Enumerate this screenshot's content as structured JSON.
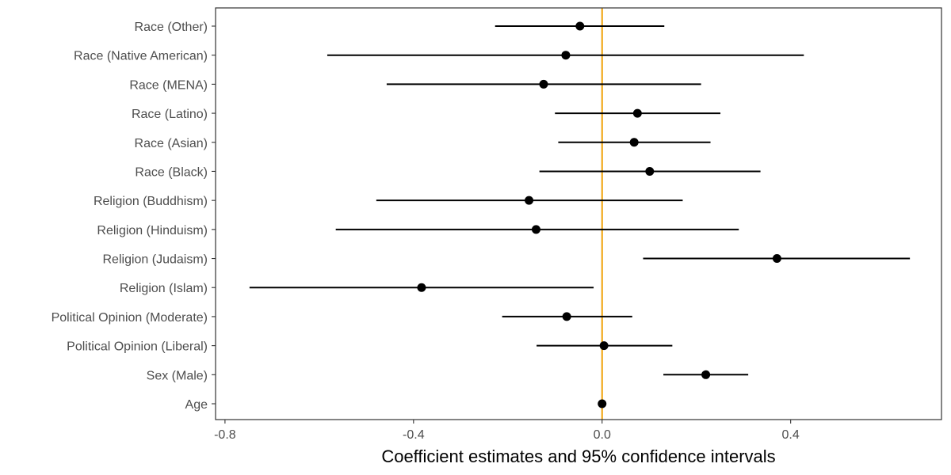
{
  "chart_data": {
    "type": "scatter",
    "subtype": "coefficient-plot",
    "title": "",
    "xlabel": "Coefficient estimates and 95% confidence intervals",
    "ylabel": "",
    "xlim": [
      -0.82,
      0.72
    ],
    "xticks": [
      -0.8,
      -0.4,
      0.0,
      0.4
    ],
    "xtick_labels": [
      "-0.8",
      "-0.4",
      "0.0",
      "0.4"
    ],
    "reference_line": {
      "x": 0.0,
      "color": "#f0a30a"
    },
    "grid": false,
    "legend": "none",
    "point_color": "#000000",
    "categories": [
      "Race (Other)",
      "Race (Native American)",
      "Race (MENA)",
      "Race (Latino)",
      "Race (Asian)",
      "Race (Black)",
      "Religion (Buddhism)",
      "Religion (Hinduism)",
      "Religion (Judaism)",
      "Religion (Islam)",
      "Political Opinion (Moderate)",
      "Political Opinion (Liberal)",
      "Sex (Male)",
      "Age"
    ],
    "estimates": [
      -0.047,
      -0.077,
      -0.124,
      0.075,
      0.068,
      0.101,
      -0.155,
      -0.14,
      0.371,
      -0.383,
      -0.075,
      0.004,
      0.22,
      0.0
    ],
    "ci_low": [
      -0.227,
      -0.583,
      -0.457,
      -0.1,
      -0.093,
      -0.133,
      -0.479,
      -0.565,
      0.087,
      -0.748,
      -0.212,
      -0.139,
      0.13,
      -0.001
    ],
    "ci_high": [
      0.132,
      0.428,
      0.21,
      0.251,
      0.23,
      0.336,
      0.171,
      0.29,
      0.653,
      -0.018,
      0.064,
      0.149,
      0.31,
      0.001
    ]
  }
}
